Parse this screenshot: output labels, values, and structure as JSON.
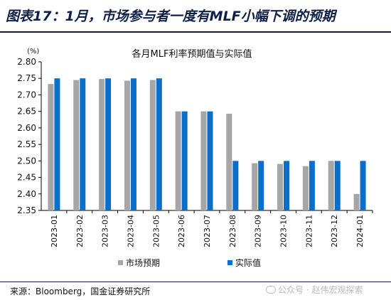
{
  "header": {
    "title": "图表17：1月，市场参与者一度有MLF小幅下调的预期"
  },
  "footer": {
    "source": "来源：Bloomberg，国金证券研究所",
    "watermark": "公众号 · 赵伟宏观探索"
  },
  "chart_data": {
    "type": "bar",
    "title": "各月MLF利率预期值与实际值",
    "ylabel": "(%)",
    "ylim": [
      2.35,
      2.8
    ],
    "yticks": [
      "2.35",
      "2.40",
      "2.45",
      "2.50",
      "2.55",
      "2.60",
      "2.65",
      "2.70",
      "2.75",
      "2.80"
    ],
    "grid": false,
    "legend_position": "bottom",
    "categories": [
      "2023-01",
      "2023-02",
      "2023-03",
      "2023-04",
      "2023-05",
      "2023-06",
      "2023-07",
      "2023-08",
      "2023-09",
      "2023-10",
      "2023-11",
      "2023-12",
      "2024-01"
    ],
    "series": [
      {
        "name": "市场预期",
        "color": "#a6a6a6",
        "values": [
          2.733,
          2.745,
          2.748,
          2.743,
          2.745,
          2.65,
          2.65,
          2.643,
          2.493,
          2.491,
          2.484,
          2.5,
          2.4
        ]
      },
      {
        "name": "实际值",
        "color": "#0b6fc9",
        "values": [
          2.75,
          2.75,
          2.75,
          2.75,
          2.75,
          2.65,
          2.65,
          2.5,
          2.5,
          2.5,
          2.5,
          2.5,
          2.5
        ]
      }
    ]
  }
}
